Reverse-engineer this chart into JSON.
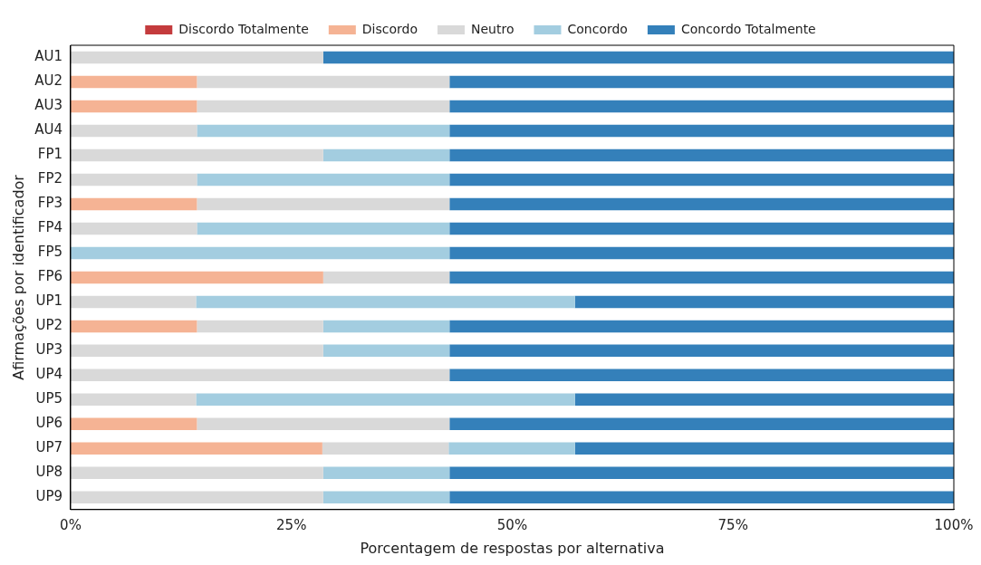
{
  "chart_data": {
    "type": "bar",
    "orientation": "horizontal",
    "stacked": true,
    "categories": [
      "AU1",
      "AU2",
      "AU3",
      "AU4",
      "FP1",
      "FP2",
      "FP3",
      "FP4",
      "FP5",
      "FP6",
      "UP1",
      "UP2",
      "UP3",
      "UP4",
      "UP5",
      "UP6",
      "UP7",
      "UP8",
      "UP9"
    ],
    "series": [
      {
        "name": "Discordo Totalmente",
        "color": "#c43b3d",
        "values": [
          0,
          0,
          0,
          0,
          0,
          0,
          0,
          0,
          0,
          0,
          0,
          0,
          0,
          0,
          0,
          0,
          0,
          0,
          0
        ]
      },
      {
        "name": "Discordo",
        "color": "#f5b394",
        "values": [
          0,
          14.3,
          14.3,
          0,
          0,
          0,
          14.3,
          0,
          0,
          28.6,
          0,
          14.3,
          0,
          0,
          0,
          14.3,
          28.5,
          0,
          0
        ]
      },
      {
        "name": "Neutro",
        "color": "#d9d9d9",
        "values": [
          28.6,
          28.6,
          28.6,
          14.3,
          28.6,
          14.3,
          28.6,
          14.3,
          0,
          14.3,
          14.2,
          14.3,
          28.6,
          42.9,
          14.2,
          28.6,
          14.3,
          28.6,
          28.6
        ]
      },
      {
        "name": "Concordo",
        "color": "#a3cde0",
        "values": [
          0,
          0,
          0,
          28.6,
          14.3,
          28.6,
          0,
          28.6,
          42.9,
          0,
          42.9,
          14.3,
          14.3,
          0,
          42.9,
          0,
          14.3,
          14.3,
          14.3
        ]
      },
      {
        "name": "Concordo Totalmente",
        "color": "#3480ba",
        "values": [
          71.4,
          57.1,
          57.1,
          57.1,
          57.1,
          57.1,
          57.1,
          57.1,
          57.1,
          57.1,
          42.9,
          57.1,
          57.1,
          57.1,
          42.9,
          57.1,
          42.9,
          57.1,
          57.1
        ]
      }
    ],
    "xlim": [
      0,
      100
    ],
    "xticks": [
      {
        "value": 0,
        "label": "0%"
      },
      {
        "value": 25,
        "label": "25%"
      },
      {
        "value": 50,
        "label": "50%"
      },
      {
        "value": 75,
        "label": "75%"
      },
      {
        "value": 100,
        "label": "100%"
      }
    ],
    "xlabel": "Porcentagem de respostas por alternativa",
    "ylabel": "Afirmações por identificador",
    "grid": false,
    "legend": "top"
  }
}
